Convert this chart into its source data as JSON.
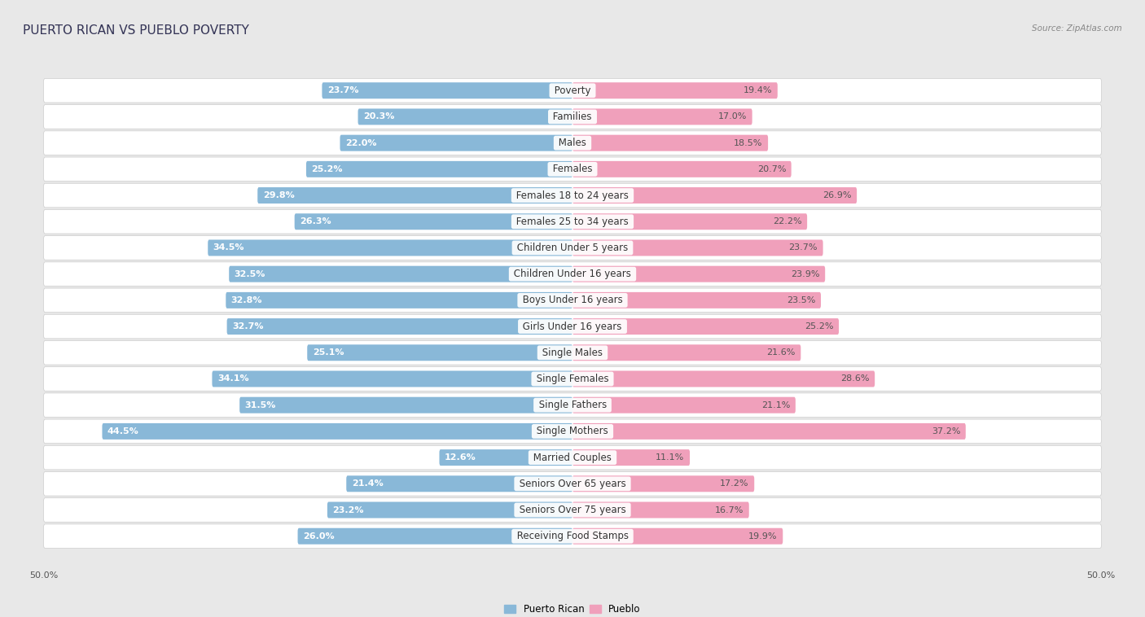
{
  "title": "PUERTO RICAN VS PUEBLO POVERTY",
  "source": "Source: ZipAtlas.com",
  "categories": [
    "Poverty",
    "Families",
    "Males",
    "Females",
    "Females 18 to 24 years",
    "Females 25 to 34 years",
    "Children Under 5 years",
    "Children Under 16 years",
    "Boys Under 16 years",
    "Girls Under 16 years",
    "Single Males",
    "Single Females",
    "Single Fathers",
    "Single Mothers",
    "Married Couples",
    "Seniors Over 65 years",
    "Seniors Over 75 years",
    "Receiving Food Stamps"
  ],
  "left_values": [
    23.7,
    20.3,
    22.0,
    25.2,
    29.8,
    26.3,
    34.5,
    32.5,
    32.8,
    32.7,
    25.1,
    34.1,
    31.5,
    44.5,
    12.6,
    21.4,
    23.2,
    26.0
  ],
  "right_values": [
    19.4,
    17.0,
    18.5,
    20.7,
    26.9,
    22.2,
    23.7,
    23.9,
    23.5,
    25.2,
    21.6,
    28.6,
    21.1,
    37.2,
    11.1,
    17.2,
    16.7,
    19.9
  ],
  "left_color": "#89b8d8",
  "right_color": "#f0a0bb",
  "max_val": 50.0,
  "legend_left": "Puerto Rican",
  "legend_right": "Pueblo",
  "bg_color": "#e8e8e8",
  "row_light_color": "#ffffff",
  "row_dark_color": "#ebebeb",
  "title_fontsize": 11,
  "label_fontsize": 8.5,
  "value_fontsize": 8.0
}
